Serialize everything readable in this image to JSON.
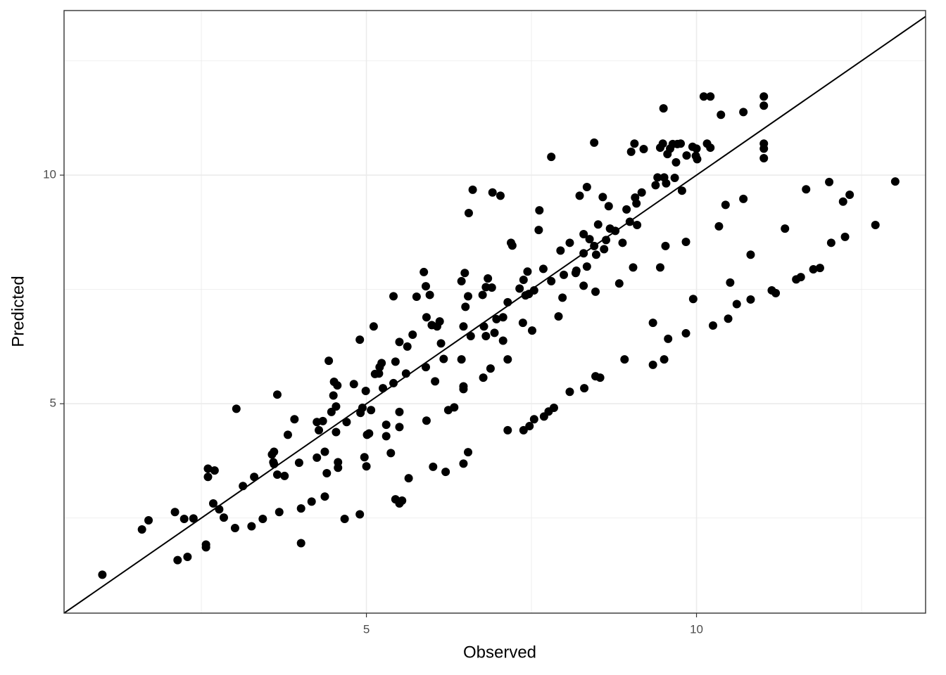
{
  "chart_data": {
    "type": "scatter",
    "x_label": "Observed",
    "y_label": "Predicted",
    "color": "#000000",
    "grid": true,
    "diagonal": true,
    "xlim": [
      0.42,
      13.47
    ],
    "ylim": [
      0.42,
      13.6
    ],
    "xticks": [
      5,
      10
    ],
    "yticks": [
      5,
      10
    ],
    "xminor": [
      2.5,
      7.5,
      12.5
    ],
    "yminor": [
      2.5,
      7.5,
      12.5
    ],
    "x": [
      1.0,
      1.6,
      1.7,
      2.1,
      2.14,
      2.24,
      2.29,
      2.38,
      2.57,
      2.57,
      2.6,
      2.6,
      2.7,
      2.68,
      2.77,
      2.84,
      3.01,
      3.03,
      3.13,
      3.26,
      3.3,
      3.43,
      3.57,
      3.6,
      3.59,
      3.6,
      3.65,
      3.65,
      3.68,
      3.76,
      3.81,
      3.91,
      3.98,
      4.01,
      4.01,
      4.17,
      4.25,
      4.28,
      4.25,
      4.34,
      4.37,
      4.37,
      4.4,
      4.43,
      4.47,
      4.5,
      4.51,
      4.54,
      4.54,
      4.56,
      4.57,
      4.57,
      4.67,
      4.7,
      4.81,
      4.9,
      4.9,
      4.91,
      4.94,
      4.97,
      4.99,
      5.0,
      5.01,
      5.04,
      5.07,
      5.11,
      5.13,
      5.19,
      5.2,
      5.23,
      5.25,
      5.3,
      5.3,
      5.37,
      5.41,
      5.41,
      5.44,
      5.44,
      5.5,
      5.5,
      5.5,
      5.5,
      5.54,
      5.6,
      5.62,
      5.64,
      5.7,
      5.76,
      5.87,
      5.9,
      5.9,
      5.91,
      5.91,
      5.96,
      5.99,
      6.01,
      6.04,
      6.07,
      6.11,
      6.13,
      6.17,
      6.2,
      6.24,
      6.33,
      6.44,
      6.44,
      6.47,
      6.47,
      6.47,
      6.47,
      6.49,
      6.5,
      6.54,
      6.54,
      6.55,
      6.58,
      6.61,
      6.76,
      6.77,
      6.78,
      6.81,
      6.81,
      6.84,
      6.88,
      6.9,
      6.91,
      6.94,
      6.97,
      7.03,
      7.07,
      7.07,
      7.14,
      7.14,
      7.14,
      7.19,
      7.21,
      7.32,
      7.37,
      7.38,
      7.38,
      7.41,
      7.44,
      7.46,
      7.47,
      7.51,
      7.54,
      7.54,
      7.61,
      7.62,
      7.68,
      7.69,
      7.76,
      7.8,
      7.8,
      7.84,
      7.91,
      7.94,
      7.97,
      7.99,
      8.08,
      8.08,
      8.17,
      8.18,
      8.23,
      8.29,
      8.29,
      8.29,
      8.3,
      8.34,
      8.34,
      8.38,
      8.45,
      8.45,
      8.47,
      8.47,
      8.48,
      8.51,
      8.54,
      8.58,
      8.6,
      8.63,
      8.67,
      8.69,
      8.77,
      8.83,
      8.88,
      8.91,
      8.94,
      8.99,
      9.01,
      9.04,
      9.06,
      9.07,
      9.09,
      9.1,
      9.17,
      9.2,
      9.34,
      9.34,
      9.38,
      9.41,
      9.45,
      9.45,
      9.49,
      9.5,
      9.51,
      9.51,
      9.53,
      9.54,
      9.56,
      9.57,
      9.6,
      9.64,
      9.67,
      9.69,
      9.71,
      9.76,
      9.78,
      9.84,
      9.84,
      9.85,
      9.94,
      9.95,
      9.99,
      10.0,
      10.01,
      10.11,
      10.16,
      10.21,
      10.21,
      10.25,
      10.34,
      10.37,
      10.44,
      10.48,
      10.51,
      10.61,
      10.71,
      10.71,
      10.82,
      10.82,
      11.02,
      11.02,
      11.02,
      11.02,
      11.02,
      11.14,
      11.2,
      11.34,
      11.51,
      11.58,
      11.66,
      11.77,
      11.87,
      12.01,
      12.04,
      12.22,
      12.25,
      12.32,
      12.71,
      13.01
    ],
    "values": [
      1.26,
      2.25,
      2.45,
      2.63,
      1.58,
      2.48,
      1.65,
      2.49,
      1.92,
      1.86,
      3.58,
      3.4,
      3.54,
      2.82,
      2.69,
      2.51,
      2.28,
      4.89,
      3.2,
      2.32,
      3.4,
      2.48,
      3.89,
      3.95,
      3.72,
      3.68,
      5.2,
      3.45,
      2.63,
      3.42,
      4.32,
      4.66,
      3.71,
      2.71,
      1.95,
      2.86,
      4.6,
      4.42,
      3.82,
      4.62,
      3.95,
      2.97,
      3.48,
      5.94,
      4.82,
      5.18,
      5.48,
      4.94,
      4.38,
      5.4,
      3.72,
      3.6,
      2.48,
      4.6,
      5.43,
      2.58,
      6.4,
      4.8,
      4.91,
      3.83,
      5.28,
      3.63,
      4.32,
      4.35,
      4.86,
      6.69,
      5.65,
      5.66,
      5.8,
      5.89,
      5.34,
      4.54,
      4.29,
      3.92,
      7.35,
      5.45,
      5.92,
      2.91,
      6.35,
      4.82,
      4.49,
      2.82,
      2.88,
      5.66,
      6.25,
      3.37,
      6.51,
      7.34,
      7.88,
      7.57,
      5.8,
      6.89,
      4.63,
      7.38,
      6.72,
      3.62,
      5.49,
      6.69,
      6.8,
      6.32,
      5.98,
      3.51,
      4.86,
      4.92,
      7.68,
      5.97,
      6.69,
      5.38,
      5.32,
      3.69,
      7.86,
      7.12,
      7.35,
      3.94,
      9.17,
      6.48,
      9.68,
      7.38,
      5.57,
      6.69,
      7.55,
      6.48,
      7.74,
      5.77,
      7.54,
      9.62,
      6.55,
      6.85,
      9.55,
      6.38,
      6.89,
      4.42,
      5.97,
      7.22,
      8.52,
      8.46,
      7.52,
      6.77,
      4.42,
      7.71,
      7.37,
      7.89,
      7.4,
      4.51,
      6.6,
      7.48,
      4.66,
      8.8,
      9.23,
      7.95,
      4.72,
      4.83,
      7.68,
      10.4,
      4.91,
      6.91,
      8.35,
      7.32,
      7.82,
      8.52,
      5.26,
      7.86,
      7.91,
      9.55,
      7.58,
      8.71,
      8.29,
      5.34,
      9.74,
      8.0,
      8.6,
      10.71,
      8.45,
      7.45,
      5.6,
      8.26,
      8.92,
      5.57,
      9.52,
      8.38,
      8.58,
      9.32,
      8.83,
      8.78,
      7.63,
      8.52,
      5.97,
      9.25,
      8.98,
      10.51,
      7.98,
      10.69,
      9.51,
      9.38,
      8.91,
      9.62,
      10.57,
      6.77,
      5.85,
      9.78,
      9.95,
      7.98,
      10.6,
      10.69,
      11.46,
      9.95,
      5.97,
      8.45,
      9.82,
      10.46,
      6.42,
      10.58,
      10.68,
      9.94,
      10.28,
      10.68,
      10.69,
      9.66,
      8.54,
      6.54,
      10.43,
      10.62,
      7.29,
      10.42,
      10.58,
      10.35,
      11.72,
      10.69,
      11.72,
      10.6,
      6.71,
      8.88,
      11.32,
      9.35,
      6.86,
      7.65,
      7.18,
      9.48,
      11.38,
      7.28,
      8.26,
      11.72,
      11.52,
      10.69,
      10.58,
      10.37,
      7.48,
      7.42,
      8.83,
      7.72,
      7.77,
      9.69,
      7.94,
      7.97,
      9.85,
      8.52,
      9.42,
      8.65,
      9.57,
      8.91,
      9.86
    ]
  }
}
